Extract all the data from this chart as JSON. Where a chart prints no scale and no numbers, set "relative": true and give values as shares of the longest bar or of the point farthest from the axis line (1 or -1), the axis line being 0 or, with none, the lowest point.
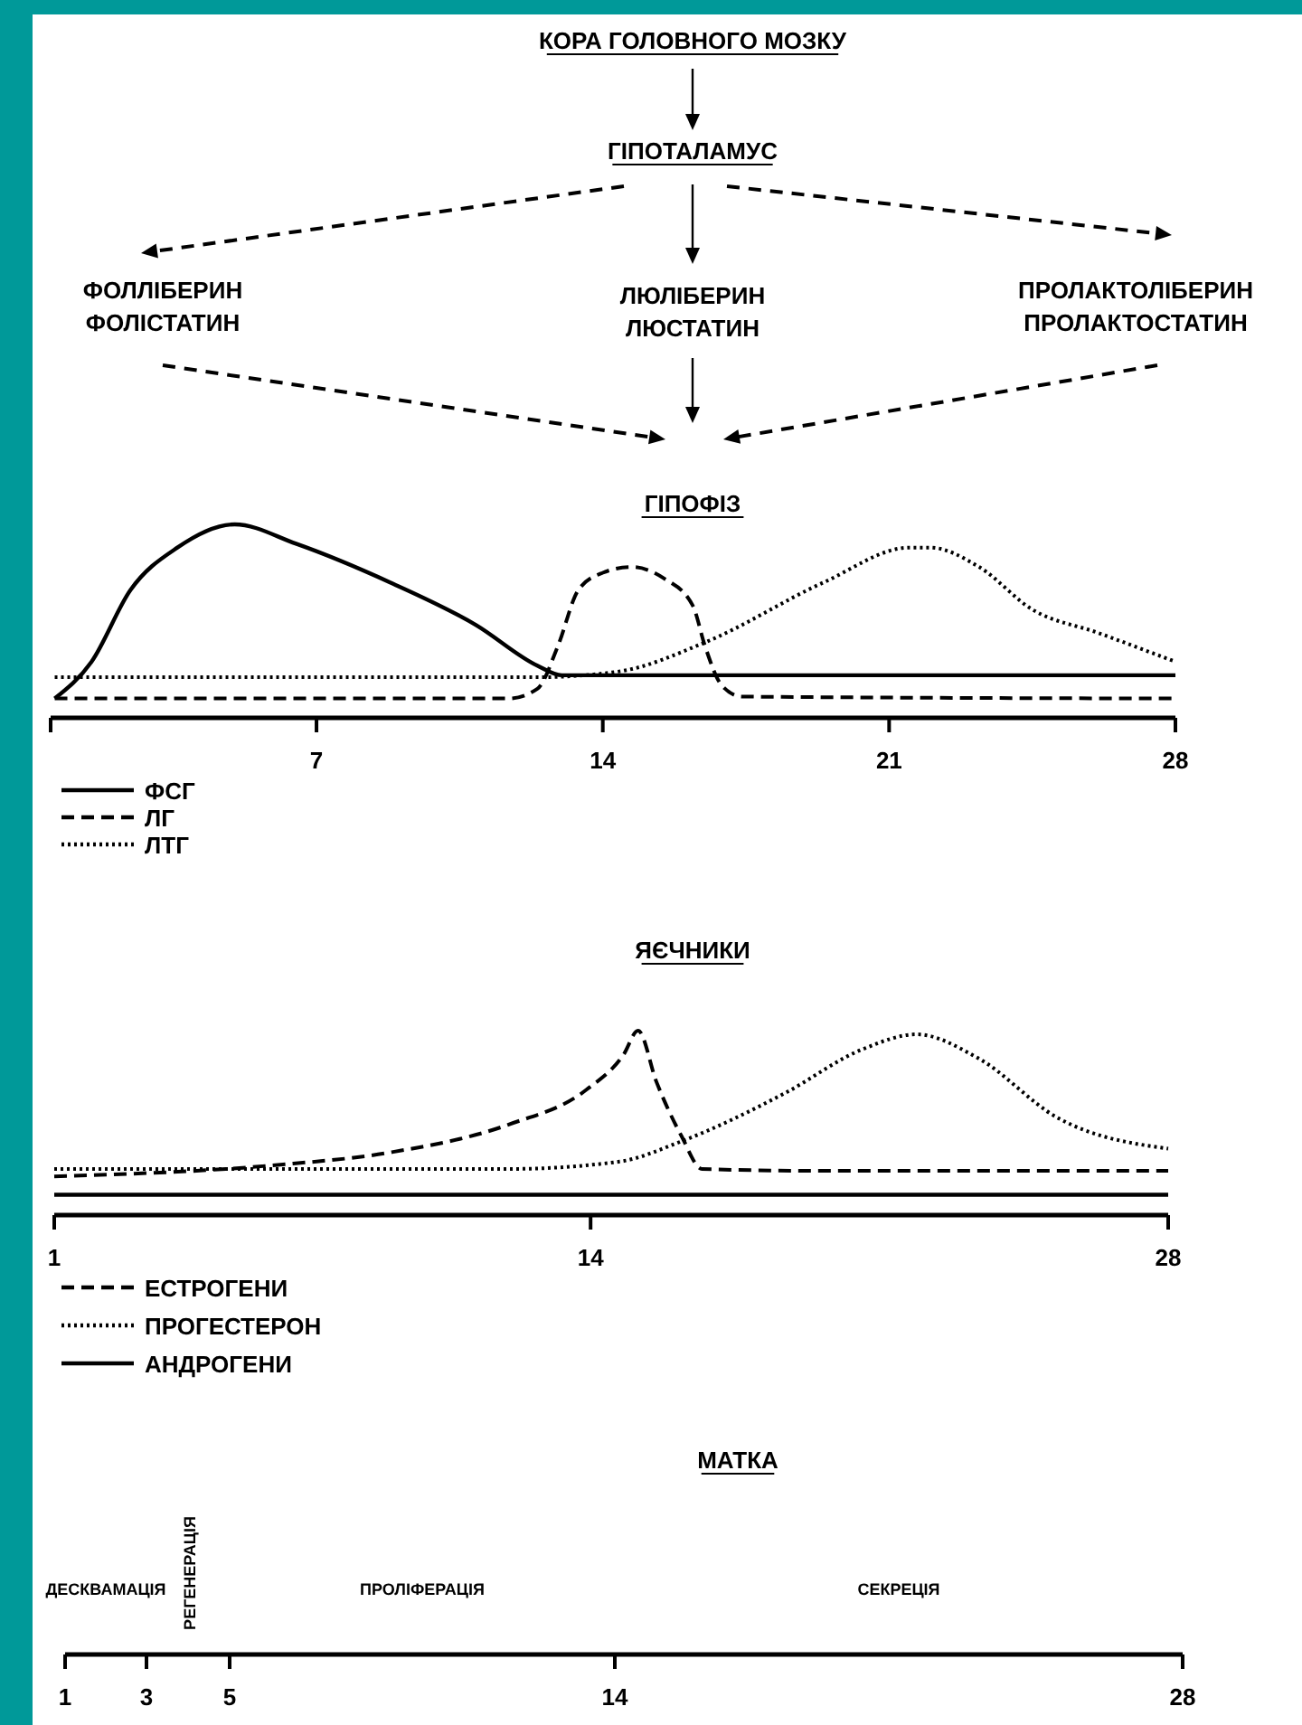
{
  "chart_data": [
    {
      "type": "other",
      "title": "КОРА ГОЛОВНОГО МОЗКУ",
      "annotations": [
        "ГІПОТАЛАМУС",
        "ФОЛЛІБЕРИН\nФОЛІСТАТИН",
        "ЛЮЛІБЕРИН\nЛЮСТАТИН",
        "ПРОЛАКТОЛІБЕРИН\nПРОЛАКТОСТАТИН"
      ]
    },
    {
      "type": "line",
      "title": "ГІПОФІЗ",
      "relative": true,
      "xlim": [
        0.5,
        28
      ],
      "xticks": [
        {
          "value": 0.5,
          "label": null
        },
        7,
        14,
        21,
        28
      ],
      "legend": "bottom left",
      "series": [
        {
          "name": "ФСГ",
          "color": "#000000",
          "line_style": "solid",
          "x": [
            0.6,
            1.5,
            2.45,
            3.6,
            5.0,
            6.5,
            8.8,
            10.9,
            12.4,
            13.0,
            28
          ],
          "values": [
            0.1,
            0.29,
            0.66,
            0.88,
            1.0,
            0.9,
            0.7,
            0.48,
            0.27,
            0.22,
            0.22
          ]
        },
        {
          "name": "ЛГ",
          "color": "#000000",
          "line_style": "dashed",
          "x": [
            0.6,
            11.7,
            12.4,
            12.9,
            13.4,
            14.0,
            14.7,
            15.5,
            16.2,
            16.5,
            16.9,
            17.4,
            28
          ],
          "values": [
            0.1,
            0.1,
            0.15,
            0.37,
            0.66,
            0.75,
            0.78,
            0.72,
            0.58,
            0.37,
            0.17,
            0.11,
            0.1
          ]
        },
        {
          "name": "ЛТГ",
          "color": "#000000",
          "line_style": "dotted",
          "x": [
            0.6,
            12.4,
            14.4,
            16.5,
            19.4,
            21.5,
            22.0,
            23.2,
            24.5,
            26.1,
            28
          ],
          "values": [
            0.21,
            0.21,
            0.24,
            0.39,
            0.7,
            0.88,
            0.88,
            0.78,
            0.56,
            0.44,
            0.29
          ]
        }
      ]
    },
    {
      "type": "line",
      "title": "ЯЄЧНИКИ",
      "relative": true,
      "xlim": [
        1,
        28
      ],
      "xticks": [
        1,
        14,
        28
      ],
      "legend": "bottom left",
      "series": [
        {
          "name": "ЕСТРОГЕНИ",
          "color": "#000000",
          "line_style": "dashed",
          "x": [
            1,
            6.3,
            9.15,
            12.0,
            13.9,
            14.8,
            15.15,
            15.6,
            16.2,
            16.7,
            19.6,
            28
          ],
          "values": [
            0.21,
            0.27,
            0.34,
            0.49,
            0.68,
            0.87,
            1.0,
            0.72,
            0.43,
            0.25,
            0.24,
            0.24
          ]
        },
        {
          "name": "ПРОГЕСТЕРОН",
          "color": "#000000",
          "line_style": "dotted",
          "x": [
            1,
            12.0,
            14.7,
            16.2,
            18.7,
            20.6,
            21.9,
            23.4,
            25.3,
            28
          ],
          "values": [
            0.25,
            0.25,
            0.29,
            0.4,
            0.66,
            0.9,
            0.98,
            0.85,
            0.53,
            0.36
          ]
        },
        {
          "name": "АНДРОГЕНИ",
          "color": "#000000",
          "line_style": "solid",
          "x": [
            1,
            28
          ],
          "values": [
            0.11,
            0.11
          ]
        }
      ]
    },
    {
      "type": "other",
      "title": "МАТКА",
      "annotations": [
        "ДЕСКВАМАЦІЯ",
        "РЕГЕНЕРАЦІЯ",
        "ПРОЛІФЕРАЦІЯ",
        "СЕКРЕЦІЯ",
        "1",
        "3",
        "5",
        "14",
        "28"
      ]
    }
  ]
}
